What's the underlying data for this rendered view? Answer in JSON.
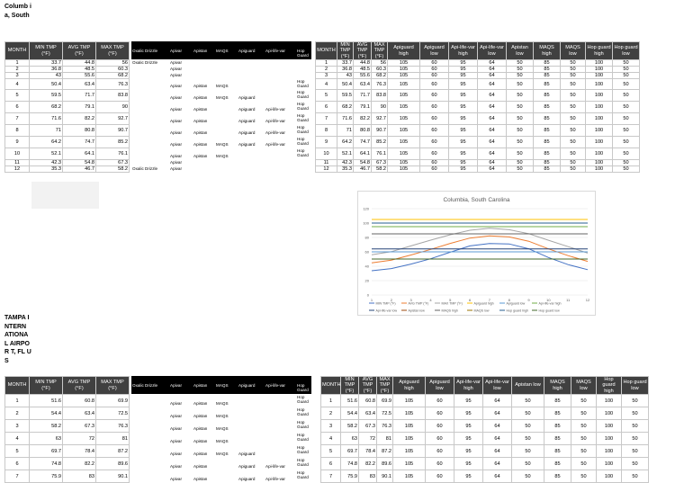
{
  "labels": {
    "columbia": "Columb ia, South",
    "tampa": "TAMPA INTERN ATIONA L AIRPOR T, FL US"
  },
  "left_header": [
    "MONTH",
    "MIN TMP (°F)",
    "AVG TMP (°F)",
    "MAX TMP (°F)"
  ],
  "treatment_header": [
    "Oxalic Drizzle",
    "Apivar",
    "Apistan",
    "MAQS",
    "Apiguard",
    "Api-life-var",
    "Hop Guard"
  ],
  "right_header": [
    "MONTH",
    "MIN TMP (°F)",
    "AVG TMP (°F)",
    "MAX TMP (°F)",
    "Apiguard high",
    "Apiguard low",
    "Api-life-var high",
    "Api-life-var low",
    "Apistan low",
    "MAQS high",
    "MAQS low",
    "Hop guard high",
    "Hop guard low"
  ],
  "thresholds": [
    "105",
    "60",
    "95",
    "64",
    "50",
    "85",
    "50",
    "100",
    "50"
  ],
  "columbia": {
    "rows": [
      {
        "month": "1",
        "min": "33.7",
        "avg": "44.8",
        "max": "56",
        "treatments": [
          "Oxalic Drizzle",
          "Apivar",
          "",
          "",
          "",
          "",
          ""
        ]
      },
      {
        "month": "2",
        "min": "36.8",
        "avg": "48.5",
        "max": "60.3",
        "treatments": [
          "",
          "Apivar",
          "",
          "",
          "",
          "",
          ""
        ]
      },
      {
        "month": "3",
        "min": "43",
        "avg": "55.6",
        "max": "68.2",
        "treatments": [
          "",
          "Apivar",
          "",
          "",
          "",
          "",
          ""
        ]
      },
      {
        "month": "4",
        "min": "50.4",
        "avg": "63.4",
        "max": "76.3",
        "treatments": [
          "",
          "Apivar",
          "Apistan",
          "MAQS",
          "",
          "",
          "Hop Guard"
        ]
      },
      {
        "month": "5",
        "min": "59.5",
        "avg": "71.7",
        "max": "83.8",
        "treatments": [
          "",
          "Apivar",
          "Apistan",
          "MAQS",
          "Apiguard",
          "",
          "Hop Guard"
        ]
      },
      {
        "month": "6",
        "min": "68.2",
        "avg": "79.1",
        "max": "90",
        "treatments": [
          "",
          "Apivar",
          "Apistan",
          "",
          "Apiguard",
          "Api-life-var",
          "Hop Guard"
        ]
      },
      {
        "month": "7",
        "min": "71.6",
        "avg": "82.2",
        "max": "92.7",
        "treatments": [
          "",
          "Apivar",
          "Apistan",
          "",
          "Apiguard",
          "Api-life-var",
          "Hop Guard"
        ]
      },
      {
        "month": "8",
        "min": "71",
        "avg": "80.8",
        "max": "90.7",
        "treatments": [
          "",
          "Apivar",
          "Apistan",
          "",
          "Apiguard",
          "Api-life-var",
          "Hop Guard"
        ]
      },
      {
        "month": "9",
        "min": "64.2",
        "avg": "74.7",
        "max": "85.2",
        "treatments": [
          "",
          "Apivar",
          "Apistan",
          "MAQS",
          "Apiguard",
          "Api-life-var",
          "Hop Guard"
        ]
      },
      {
        "month": "10",
        "min": "52.1",
        "avg": "64.1",
        "max": "76.1",
        "treatments": [
          "",
          "Apivar",
          "Apistan",
          "MAQS",
          "",
          "",
          "Hop Guard"
        ]
      },
      {
        "month": "11",
        "min": "42.3",
        "avg": "54.8",
        "max": "67.3",
        "treatments": [
          "",
          "Apivar",
          "",
          "",
          "",
          "",
          ""
        ]
      },
      {
        "month": "12",
        "min": "35.3",
        "avg": "46.7",
        "max": "58.2",
        "treatments": [
          "Oxalic Drizzle",
          "Apivar",
          "",
          "",
          "",
          "",
          ""
        ]
      }
    ]
  },
  "tampa": {
    "rows": [
      {
        "month": "1",
        "min": "51.6",
        "avg": "60.8",
        "max": "69.9",
        "treatments": [
          "",
          "Apivar",
          "Apistan",
          "MAQS",
          "",
          "",
          "Hop Guard"
        ]
      },
      {
        "month": "2",
        "min": "54.4",
        "avg": "63.4",
        "max": "72.5",
        "treatments": [
          "",
          "Apivar",
          "Apistan",
          "MAQS",
          "",
          "",
          "Hop Guard"
        ]
      },
      {
        "month": "3",
        "min": "58.2",
        "avg": "67.3",
        "max": "76.3",
        "treatments": [
          "",
          "Apivar",
          "Apistan",
          "MAQS",
          "",
          "",
          "Hop Guard"
        ]
      },
      {
        "month": "4",
        "min": "63",
        "avg": "72",
        "max": "81",
        "treatments": [
          "",
          "Apivar",
          "Apistan",
          "MAQS",
          "",
          "",
          "Hop Guard"
        ]
      },
      {
        "month": "5",
        "min": "69.7",
        "avg": "78.4",
        "max": "87.2",
        "treatments": [
          "",
          "Apivar",
          "Apistan",
          "MAQS",
          "Apiguard",
          "",
          "Hop Guard"
        ]
      },
      {
        "month": "6",
        "min": "74.8",
        "avg": "82.2",
        "max": "89.6",
        "treatments": [
          "",
          "Apivar",
          "Apistan",
          "",
          "Apiguard",
          "Api-life-var",
          "Hop Guard"
        ]
      },
      {
        "month": "7",
        "min": "75.9",
        "avg": "83",
        "max": "90.1",
        "treatments": [
          "",
          "Apivar",
          "Apistan",
          "",
          "Apiguard",
          "Api-life-var",
          "Hop Guard"
        ]
      }
    ]
  },
  "chart_data": {
    "type": "line",
    "title": "Columbia, South Carolina",
    "x": [
      1,
      2,
      3,
      4,
      5,
      6,
      7,
      8,
      9,
      10,
      11,
      12
    ],
    "ylim": [
      0,
      120
    ],
    "yticks": [
      0,
      20,
      40,
      60,
      80,
      100,
      120
    ],
    "grid": true,
    "legend_position": "bottom",
    "series": [
      {
        "name": "MIN TMP (°F)",
        "color": "#4472c4",
        "values": [
          33.7,
          36.8,
          43,
          50.4,
          59.5,
          68.2,
          71.6,
          71,
          64.2,
          52.1,
          42.3,
          35.3
        ]
      },
      {
        "name": "AVG TMP (°F)",
        "color": "#ed7d31",
        "values": [
          44.8,
          48.5,
          55.6,
          63.4,
          71.7,
          79.1,
          82.2,
          80.8,
          74.7,
          64.1,
          54.8,
          46.7
        ]
      },
      {
        "name": "MAX TMP (°F)",
        "color": "#a5a5a5",
        "values": [
          56,
          60.3,
          68.2,
          76.3,
          83.8,
          90,
          92.7,
          90.7,
          85.2,
          76.1,
          67.3,
          58.2
        ]
      },
      {
        "name": "Apiguard high",
        "color": "#ffc000",
        "values": [
          105,
          105,
          105,
          105,
          105,
          105,
          105,
          105,
          105,
          105,
          105,
          105
        ]
      },
      {
        "name": "Apiguard low",
        "color": "#5b9bd5",
        "values": [
          60,
          60,
          60,
          60,
          60,
          60,
          60,
          60,
          60,
          60,
          60,
          60
        ]
      },
      {
        "name": "Api-life-var high",
        "color": "#70ad47",
        "values": [
          95,
          95,
          95,
          95,
          95,
          95,
          95,
          95,
          95,
          95,
          95,
          95
        ]
      },
      {
        "name": "Api-life-var low",
        "color": "#264478",
        "values": [
          64,
          64,
          64,
          64,
          64,
          64,
          64,
          64,
          64,
          64,
          64,
          64
        ]
      },
      {
        "name": "Apistan low",
        "color": "#9e480e",
        "values": [
          50,
          50,
          50,
          50,
          50,
          50,
          50,
          50,
          50,
          50,
          50,
          50
        ]
      },
      {
        "name": "MAQS high",
        "color": "#636363",
        "values": [
          85,
          85,
          85,
          85,
          85,
          85,
          85,
          85,
          85,
          85,
          85,
          85
        ]
      },
      {
        "name": "MAQS low",
        "color": "#997300",
        "values": [
          50,
          50,
          50,
          50,
          50,
          50,
          50,
          50,
          50,
          50,
          50,
          50
        ]
      },
      {
        "name": "Hop guard high",
        "color": "#255e91",
        "values": [
          100,
          100,
          100,
          100,
          100,
          100,
          100,
          100,
          100,
          100,
          100,
          100
        ]
      },
      {
        "name": "Hop guard low",
        "color": "#43682b",
        "values": [
          50,
          50,
          50,
          50,
          50,
          50,
          50,
          50,
          50,
          50,
          50,
          50
        ]
      }
    ]
  }
}
